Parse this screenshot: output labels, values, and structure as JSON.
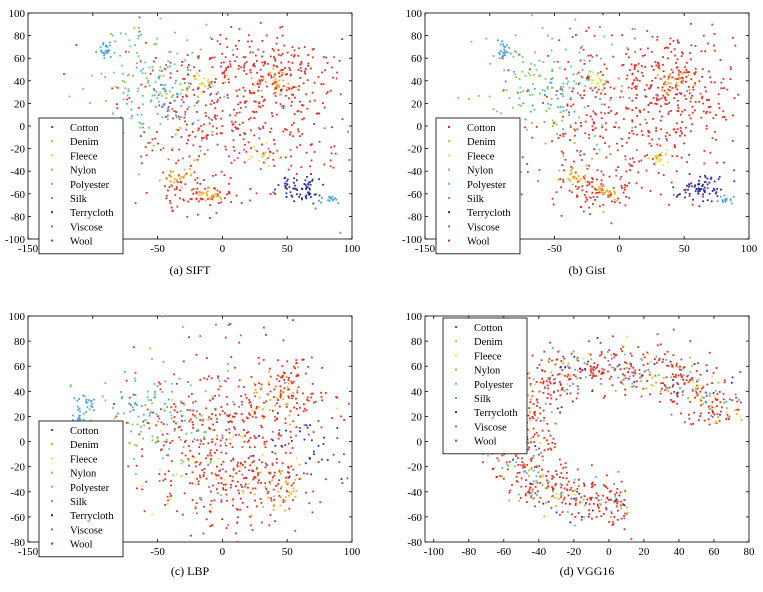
{
  "legend_labels": [
    "Cotton",
    "Denim",
    "Fleece",
    "Nylon",
    "Polyester",
    "Silk",
    "Terrycloth",
    "Viscose",
    "Wool"
  ],
  "legend_colors": [
    "#e8291c",
    "#f2a81d",
    "#e8e03a",
    "#8cc63e",
    "#5ec79a",
    "#4aa6d8",
    "#2b2fa0",
    "#a45ab8",
    "#dd2a2a"
  ],
  "chart_data": [
    {
      "type": "scatter",
      "caption": "(a) SIFT",
      "xlim": [
        -150,
        100
      ],
      "ylim": [
        -100,
        100
      ],
      "xticks": [
        "-150",
        "-100",
        "-50",
        "0",
        "50",
        "100"
      ],
      "yticks": [
        "-100",
        "-80",
        "-60",
        "-40",
        "-20",
        "0",
        "20",
        "40",
        "60",
        "80",
        "100"
      ],
      "legend": "lower-left",
      "series": [
        {
          "name": "Cotton",
          "clusters": [
            {
              "cx": 5,
              "cy": 5,
              "sx": 40,
              "sy": 35,
              "n": 340
            },
            {
              "cx": -20,
              "cy": -60,
              "sx": 15,
              "sy": 10,
              "n": 70
            },
            {
              "cx": 50,
              "cy": 40,
              "sx": 20,
              "sy": 25,
              "n": 120
            }
          ]
        },
        {
          "name": "Denim",
          "clusters": [
            {
              "cx": 40,
              "cy": 40,
              "sx": 8,
              "sy": 6,
              "n": 30
            },
            {
              "cx": -10,
              "cy": -60,
              "sx": 6,
              "sy": 4,
              "n": 25
            },
            {
              "cx": -35,
              "cy": -45,
              "sx": 6,
              "sy": 5,
              "n": 25
            }
          ]
        },
        {
          "name": "Fleece",
          "clusters": [
            {
              "cx": 30,
              "cy": -28,
              "sx": 5,
              "sy": 4,
              "n": 20
            },
            {
              "cx": -15,
              "cy": 40,
              "sx": 6,
              "sy": 5,
              "n": 20
            }
          ]
        },
        {
          "name": "Nylon",
          "clusters": [
            {
              "cx": -60,
              "cy": 30,
              "sx": 20,
              "sy": 25,
              "n": 60
            }
          ]
        },
        {
          "name": "Polyester",
          "clusters": [
            {
              "cx": -50,
              "cy": 40,
              "sx": 25,
              "sy": 25,
              "n": 80
            }
          ]
        },
        {
          "name": "Silk",
          "clusters": [
            {
              "cx": -90,
              "cy": 68,
              "sx": 3,
              "sy": 4,
              "n": 25
            },
            {
              "cx": 82,
              "cy": -65,
              "sx": 3,
              "sy": 2,
              "n": 15
            },
            {
              "cx": -45,
              "cy": 25,
              "sx": 15,
              "sy": 15,
              "n": 40
            }
          ]
        },
        {
          "name": "Terrycloth",
          "clusters": [
            {
              "cx": 62,
              "cy": -55,
              "sx": 8,
              "sy": 6,
              "n": 70
            }
          ]
        },
        {
          "name": "Viscose",
          "clusters": [
            {
              "cx": 10,
              "cy": 20,
              "sx": 40,
              "sy": 40,
              "n": 50
            }
          ]
        },
        {
          "name": "Wool",
          "clusters": [
            {
              "cx": 20,
              "cy": 50,
              "sx": 30,
              "sy": 20,
              "n": 80
            }
          ]
        }
      ]
    },
    {
      "type": "scatter",
      "caption": "(b) Gist",
      "xlim": [
        -150,
        100
      ],
      "ylim": [
        -100,
        100
      ],
      "xticks": [
        "-150",
        "-100",
        "-50",
        "0",
        "50",
        "100"
      ],
      "yticks": [
        "-100",
        "-80",
        "-60",
        "-40",
        "-20",
        "0",
        "20",
        "40",
        "60",
        "80",
        "100"
      ],
      "legend": "lower-left",
      "series": [
        {
          "name": "Cotton",
          "clusters": [
            {
              "cx": 5,
              "cy": 5,
              "sx": 40,
              "sy": 35,
              "n": 340
            },
            {
              "cx": -20,
              "cy": -60,
              "sx": 15,
              "sy": 10,
              "n": 70
            },
            {
              "cx": 50,
              "cy": 40,
              "sx": 20,
              "sy": 25,
              "n": 120
            }
          ]
        },
        {
          "name": "Denim",
          "clusters": [
            {
              "cx": 40,
              "cy": 40,
              "sx": 8,
              "sy": 6,
              "n": 30
            },
            {
              "cx": -10,
              "cy": -60,
              "sx": 6,
              "sy": 4,
              "n": 25
            },
            {
              "cx": -35,
              "cy": -45,
              "sx": 6,
              "sy": 5,
              "n": 25
            }
          ]
        },
        {
          "name": "Fleece",
          "clusters": [
            {
              "cx": 30,
              "cy": -28,
              "sx": 5,
              "sy": 4,
              "n": 20
            },
            {
              "cx": -15,
              "cy": 40,
              "sx": 6,
              "sy": 5,
              "n": 20
            }
          ]
        },
        {
          "name": "Nylon",
          "clusters": [
            {
              "cx": -60,
              "cy": 30,
              "sx": 20,
              "sy": 25,
              "n": 60
            }
          ]
        },
        {
          "name": "Polyester",
          "clusters": [
            {
              "cx": -50,
              "cy": 40,
              "sx": 25,
              "sy": 25,
              "n": 80
            }
          ]
        },
        {
          "name": "Silk",
          "clusters": [
            {
              "cx": -90,
              "cy": 68,
              "sx": 3,
              "sy": 4,
              "n": 25
            },
            {
              "cx": 82,
              "cy": -65,
              "sx": 3,
              "sy": 2,
              "n": 15
            },
            {
              "cx": -45,
              "cy": 25,
              "sx": 15,
              "sy": 15,
              "n": 40
            }
          ]
        },
        {
          "name": "Terrycloth",
          "clusters": [
            {
              "cx": 62,
              "cy": -55,
              "sx": 8,
              "sy": 6,
              "n": 70
            }
          ]
        },
        {
          "name": "Viscose",
          "clusters": [
            {
              "cx": 10,
              "cy": 20,
              "sx": 40,
              "sy": 40,
              "n": 50
            }
          ]
        },
        {
          "name": "Wool",
          "clusters": [
            {
              "cx": 20,
              "cy": 50,
              "sx": 30,
              "sy": 20,
              "n": 80
            }
          ]
        }
      ]
    },
    {
      "type": "scatter",
      "caption": "(c) LBP",
      "xlim": [
        -150,
        100
      ],
      "ylim": [
        -80,
        100
      ],
      "xticks": [
        "-150",
        "-100",
        "-50",
        "0",
        "50",
        "100"
      ],
      "yticks": [
        "-80",
        "-60",
        "-40",
        "-20",
        "0",
        "20",
        "40",
        "60",
        "80",
        "100"
      ],
      "legend": "lower-left",
      "series": [
        {
          "name": "Cotton",
          "clusters": [
            {
              "cx": 5,
              "cy": 0,
              "sx": 40,
              "sy": 32,
              "n": 420
            },
            {
              "cx": 50,
              "cy": 40,
              "sx": 15,
              "sy": 15,
              "n": 80
            }
          ]
        },
        {
          "name": "Denim",
          "clusters": [
            {
              "cx": 45,
              "cy": -40,
              "sx": 12,
              "sy": 10,
              "n": 40
            },
            {
              "cx": 40,
              "cy": 40,
              "sx": 10,
              "sy": 10,
              "n": 30
            }
          ]
        },
        {
          "name": "Fleece",
          "clusters": [
            {
              "cx": 0,
              "cy": -20,
              "sx": 30,
              "sy": 25,
              "n": 40
            }
          ]
        },
        {
          "name": "Nylon",
          "clusters": [
            {
              "cx": -40,
              "cy": 10,
              "sx": 25,
              "sy": 25,
              "n": 50
            }
          ]
        },
        {
          "name": "Polyester",
          "clusters": [
            {
              "cx": -50,
              "cy": 20,
              "sx": 25,
              "sy": 25,
              "n": 60
            }
          ]
        },
        {
          "name": "Silk",
          "clusters": [
            {
              "cx": -105,
              "cy": 30,
              "sx": 4,
              "sy": 4,
              "n": 25
            },
            {
              "cx": -110,
              "cy": 18,
              "sx": 3,
              "sy": 3,
              "n": 15
            },
            {
              "cx": -60,
              "cy": 30,
              "sx": 15,
              "sy": 15,
              "n": 40
            }
          ]
        },
        {
          "name": "Terrycloth",
          "clusters": [
            {
              "cx": 60,
              "cy": -5,
              "sx": 15,
              "sy": 15,
              "n": 30
            }
          ]
        },
        {
          "name": "Viscose",
          "clusters": [
            {
              "cx": 10,
              "cy": 10,
              "sx": 40,
              "sy": 35,
              "n": 50
            }
          ]
        },
        {
          "name": "Wool",
          "clusters": [
            {
              "cx": 20,
              "cy": -40,
              "sx": 30,
              "sy": 15,
              "n": 80
            }
          ]
        }
      ]
    },
    {
      "type": "scatter",
      "caption": "(d) VGG16",
      "xlim": [
        -105,
        80
      ],
      "ylim": [
        -80,
        100
      ],
      "xticks": [
        "-100",
        "-80",
        "-60",
        "-40",
        "-20",
        "0",
        "20",
        "40",
        "60",
        "80"
      ],
      "yticks": [
        "-80",
        "-60",
        "-40",
        "-20",
        "0",
        "20",
        "40",
        "60",
        "80",
        "100"
      ],
      "legend": "upper-left",
      "ring": {
        "cx": 5,
        "cy": 5,
        "rx": 62,
        "ry": 55,
        "t0": 10,
        "t1": 275
      },
      "series": [
        {
          "name": "Cotton",
          "n": 600
        },
        {
          "name": "Denim",
          "n": 60
        },
        {
          "name": "Fleece",
          "n": 50
        },
        {
          "name": "Nylon",
          "n": 50
        },
        {
          "name": "Polyester",
          "n": 60
        },
        {
          "name": "Silk",
          "n": 70
        },
        {
          "name": "Terrycloth",
          "n": 50
        },
        {
          "name": "Viscose",
          "n": 40
        },
        {
          "name": "Wool",
          "n": 80
        }
      ]
    }
  ]
}
